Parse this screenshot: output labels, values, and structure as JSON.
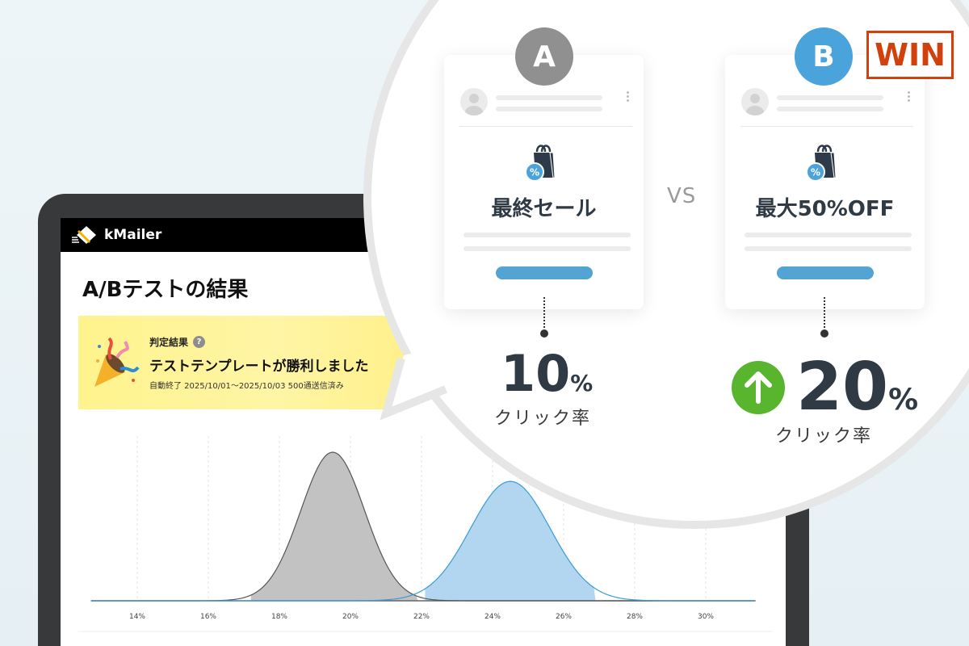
{
  "app": {
    "name": "kMailer"
  },
  "page": {
    "title": "A/Bテストの結果"
  },
  "banner": {
    "label": "判定結果",
    "help_icon": "?",
    "message": "テストテンプレートが勝利しました",
    "detail": "自動終了 2025/10/01〜2025/10/03 500通送信済み"
  },
  "comparison": {
    "vs": "VS",
    "win_label": "WIN",
    "variants": [
      {
        "badge": "A",
        "headline": "最終セール",
        "rate_value": "10",
        "rate_unit": "%",
        "rate_label": "クリック率",
        "badge_color": "#909090"
      },
      {
        "badge": "B",
        "headline": "最大50%OFF",
        "rate_value": "20",
        "rate_unit": "%",
        "rate_label": "クリック率",
        "badge_color": "#4aa3da",
        "improvement_icon": "arrow-up-icon",
        "improvement_color": "#5ab52e"
      }
    ],
    "win_color": "#d2400e"
  },
  "chart_data": {
    "type": "area",
    "title": "",
    "xlabel": "",
    "ylabel": "",
    "x_ticks": [
      "14%",
      "16%",
      "18%",
      "20%",
      "22%",
      "24%",
      "26%",
      "28%",
      "30%"
    ],
    "xlim": [
      12.7,
      31.4
    ],
    "grid": "vertical dashed",
    "legend": "none",
    "series": [
      {
        "distribution": "normal",
        "mean": 19.5,
        "sd": 0.9,
        "shaded_range": [
          17.2,
          21.9
        ],
        "color": "#c2c2c2",
        "line_color": "#555555"
      },
      {
        "distribution": "normal",
        "mean": 24.5,
        "sd": 1.12,
        "shaded_range": [
          22.1,
          26.9
        ],
        "color": "#b2d5f0",
        "line_color": "#3a9ad9"
      }
    ]
  }
}
